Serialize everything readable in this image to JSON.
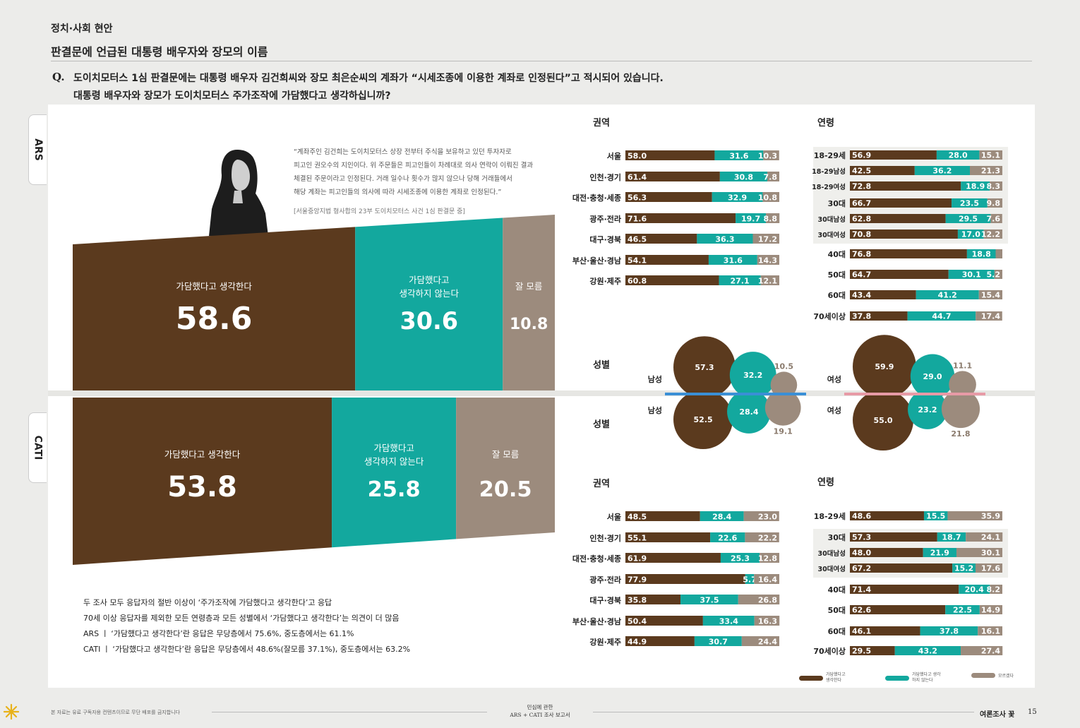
{
  "header": {
    "section": "정치·사회 현안",
    "title": "판결문에 언급된 대통령 배우자와 장모의 이름",
    "q_mark": "Q.",
    "question_1": "도이치모터스 1심 판결문에는 대통령 배우자 김건희씨와 장모 최은순씨의 계좌가 “시세조종에 이용한 계좌로 인정된다”고 적시되어 있습니다.",
    "question_2": "대통령 배우자와 장모가 도이치모터스 주가조작에 가담했다고 생각하십니까?"
  },
  "tabs": {
    "ars": "ARS",
    "cati": "CATI"
  },
  "quote": {
    "lines": [
      "“계좌주인 김건희는 도이치모터스 상장 전부터 주식을 보유하고 있던 투자자로",
      "피고인 권오수의 지인이다. 위 주문들은 피고인들이 차례대로 의사 연락이 이뤄진 결과",
      "체결된 주문이라고 인정된다. 거래 일수나 횟수가 많지 않으나 당해 거래들에서",
      "해당 계좌는 피고인들의 의사에 따라 시세조종에 이용한 계좌로 인정된다.”"
    ],
    "source": "[서울중앙지법 형사합의 23부 도이치모터스 사건 1심 판결문 중]"
  },
  "notes": [
    "두 조사 모두 응답자의 절반 이상이 ‘주가조작에 가담했다고 생각한다’고 응답",
    "70세 이상 응답자를 제외한 모든 연령층과 모든 성별에서 ‘가담했다고 생각한다’는 의견이 더 많음",
    "ARS ㅣ ‘가담했다고 생각한다’란 응답은 무당층에서 75.6%, 중도층에서는 61.1%",
    "CATI ㅣ ‘가담했다고 생각한다’란 응답은 무당층에서 48.6%(잘모름 37.1%), 중도층에서는 63.2%"
  ],
  "colors": {
    "brown": "#5b3a1e",
    "teal": "#13a89e",
    "gray": "#9c8b7d",
    "male": "#3a8fd6",
    "female": "#e79aa6"
  },
  "labels": {
    "region": "권역",
    "age": "연령",
    "gender": "성별",
    "male": "남성",
    "female": "여성"
  },
  "legend": {
    "a": "가담했다고 생각한다",
    "b": "가담했다고 생각하지 않는다",
    "c": "모르겠다"
  },
  "footer": {
    "left": "본 자료는 유료 구독자용 컨텐츠이므로 무단 배포를 금지합니다",
    "mid1": "민심에 관한",
    "mid2": "ARS + CATI 조사 보고서",
    "right": "여론조사 꽃",
    "page": "15"
  },
  "chart_data": [
    {
      "type": "bar",
      "id": "ars_overall",
      "categories": [
        "가담했다고 생각한다",
        "가담했다고 생각하지 않는다",
        "잘 모름"
      ],
      "values": [
        58.6,
        30.6,
        10.8
      ]
    },
    {
      "type": "bar",
      "id": "cati_overall",
      "categories": [
        "가담했다고 생각한다",
        "가담했다고 생각하지 않는다",
        "잘 모름"
      ],
      "values": [
        53.8,
        25.8,
        20.5
      ]
    },
    {
      "type": "bar",
      "id": "ars_region",
      "title": "권역",
      "categories": [
        "서울",
        "인천·경기",
        "대전·충청·세종",
        "광주·전라",
        "대구·경북",
        "부산·울산·경남",
        "강원·제주"
      ],
      "series": [
        {
          "values": [
            58.0,
            61.4,
            56.3,
            71.6,
            46.5,
            54.1,
            60.8
          ]
        },
        {
          "values": [
            31.6,
            30.8,
            32.9,
            19.7,
            36.3,
            31.6,
            27.1
          ]
        },
        {
          "values": [
            10.3,
            7.8,
            10.8,
            8.8,
            17.2,
            14.3,
            12.1
          ]
        }
      ]
    },
    {
      "type": "bar",
      "id": "ars_age",
      "title": "연령",
      "categories": [
        "18-29세",
        "18-29남성",
        "18-29여성",
        "30대",
        "30대남성",
        "30대여성",
        "40대",
        "50대",
        "60대",
        "70세이상"
      ],
      "series": [
        {
          "values": [
            56.9,
            42.5,
            72.8,
            66.7,
            62.8,
            70.8,
            76.8,
            64.7,
            43.4,
            37.8
          ]
        },
        {
          "values": [
            28.0,
            36.2,
            18.9,
            23.5,
            29.5,
            17.0,
            18.8,
            30.1,
            41.2,
            44.7
          ]
        },
        {
          "values": [
            15.1,
            21.3,
            8.3,
            9.8,
            7.6,
            12.2,
            null,
            5.2,
            15.4,
            17.4
          ]
        }
      ]
    },
    {
      "type": "bubble",
      "id": "ars_gender",
      "title": "성별",
      "categories": [
        "남성",
        "여성"
      ],
      "series": [
        {
          "values": [
            57.3,
            59.9
          ]
        },
        {
          "values": [
            32.2,
            29.0
          ]
        },
        {
          "values": [
            10.5,
            11.1
          ]
        }
      ]
    },
    {
      "type": "bubble",
      "id": "cati_gender",
      "title": "성별",
      "categories": [
        "남성",
        "여성"
      ],
      "series": [
        {
          "values": [
            52.5,
            55.0
          ]
        },
        {
          "values": [
            28.4,
            23.2
          ]
        },
        {
          "values": [
            19.1,
            21.8
          ]
        }
      ]
    },
    {
      "type": "bar",
      "id": "cati_region",
      "title": "권역",
      "categories": [
        "서울",
        "인천·경기",
        "대전·충청·세종",
        "광주·전라",
        "대구·경북",
        "부산·울산·경남",
        "강원·제주"
      ],
      "series": [
        {
          "values": [
            48.5,
            55.1,
            61.9,
            77.9,
            35.8,
            50.4,
            44.9
          ]
        },
        {
          "values": [
            28.4,
            22.6,
            25.3,
            5.7,
            37.5,
            33.4,
            30.7
          ]
        },
        {
          "values": [
            23.0,
            22.2,
            12.8,
            16.4,
            26.8,
            16.3,
            24.4
          ]
        }
      ]
    },
    {
      "type": "bar",
      "id": "cati_age",
      "title": "연령",
      "categories": [
        "18-29세",
        "30대",
        "30대남성",
        "30대여성",
        "40대",
        "50대",
        "60대",
        "70세이상"
      ],
      "series": [
        {
          "values": [
            48.6,
            57.3,
            48.0,
            67.2,
            71.4,
            62.6,
            46.1,
            29.5
          ]
        },
        {
          "values": [
            15.5,
            18.7,
            21.9,
            15.2,
            20.4,
            22.5,
            37.8,
            43.2
          ]
        },
        {
          "values": [
            35.9,
            24.1,
            30.1,
            17.6,
            8.2,
            14.9,
            16.1,
            27.4
          ]
        }
      ]
    }
  ]
}
